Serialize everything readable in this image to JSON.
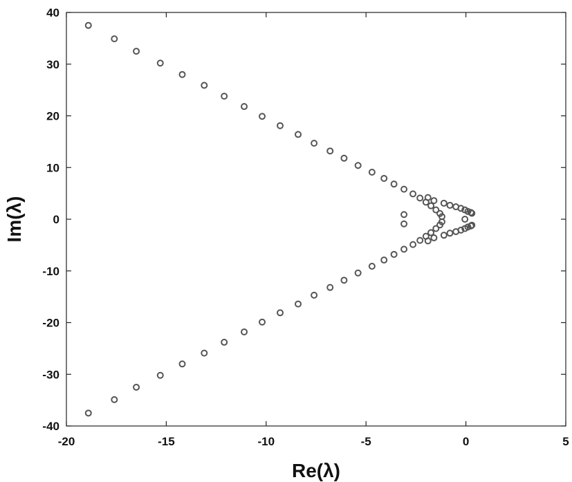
{
  "chart_data": {
    "type": "scatter",
    "title": "",
    "xlabel": "Re(λ)",
    "ylabel": "Im(λ)",
    "xlim": [
      -20,
      5
    ],
    "ylim": [
      -40,
      40
    ],
    "xticks": [
      -20,
      -15,
      -10,
      -5,
      0,
      5
    ],
    "yticks": [
      -40,
      -30,
      -20,
      -10,
      0,
      10,
      20,
      30,
      40
    ],
    "grid": false,
    "legend": "none",
    "marker": "open circle",
    "marker_color": "#555555",
    "series": [
      {
        "points": [
          [
            -18.9,
            37.5
          ],
          [
            -17.6,
            34.9
          ],
          [
            -16.5,
            32.5
          ],
          [
            -15.3,
            30.2
          ],
          [
            -14.2,
            28.0
          ],
          [
            -13.1,
            25.9
          ],
          [
            -12.1,
            23.8
          ],
          [
            -11.1,
            21.8
          ],
          [
            -10.2,
            19.9
          ],
          [
            -9.3,
            18.1
          ],
          [
            -8.4,
            16.4
          ],
          [
            -7.6,
            14.7
          ],
          [
            -6.8,
            13.2
          ],
          [
            -6.1,
            11.8
          ],
          [
            -5.4,
            10.4
          ],
          [
            -4.7,
            9.1
          ],
          [
            -4.1,
            7.9
          ],
          [
            -3.6,
            6.8
          ],
          [
            -3.1,
            5.8
          ],
          [
            -2.65,
            4.9
          ],
          [
            -2.3,
            4.1
          ],
          [
            -2.0,
            3.3
          ],
          [
            -1.75,
            2.6
          ],
          [
            -1.5,
            1.8
          ],
          [
            -1.3,
            1.1
          ],
          [
            -1.2,
            0.5
          ],
          [
            -3.1,
            0.9
          ],
          [
            -1.9,
            4.2
          ],
          [
            -1.6,
            3.6
          ],
          [
            -1.1,
            3.1
          ],
          [
            -0.8,
            2.7
          ],
          [
            -0.5,
            2.4
          ],
          [
            -0.25,
            2.1
          ],
          [
            -0.05,
            1.8
          ],
          [
            0.1,
            1.5
          ],
          [
            0.25,
            1.3
          ],
          [
            0.3,
            1.15
          ],
          [
            -0.05,
            0.0
          ],
          [
            -18.9,
            -37.5
          ],
          [
            -17.6,
            -34.9
          ],
          [
            -16.5,
            -32.5
          ],
          [
            -15.3,
            -30.2
          ],
          [
            -14.2,
            -28.0
          ],
          [
            -13.1,
            -25.9
          ],
          [
            -12.1,
            -23.8
          ],
          [
            -11.1,
            -21.8
          ],
          [
            -10.2,
            -19.9
          ],
          [
            -9.3,
            -18.1
          ],
          [
            -8.4,
            -16.4
          ],
          [
            -7.6,
            -14.7
          ],
          [
            -6.8,
            -13.2
          ],
          [
            -6.1,
            -11.8
          ],
          [
            -5.4,
            -10.4
          ],
          [
            -4.7,
            -9.1
          ],
          [
            -4.1,
            -7.9
          ],
          [
            -3.6,
            -6.8
          ],
          [
            -3.1,
            -5.8
          ],
          [
            -2.65,
            -4.9
          ],
          [
            -2.3,
            -4.1
          ],
          [
            -2.0,
            -3.3
          ],
          [
            -1.75,
            -2.6
          ],
          [
            -1.5,
            -1.8
          ],
          [
            -1.3,
            -1.1
          ],
          [
            -1.2,
            -0.5
          ],
          [
            -3.1,
            -0.9
          ],
          [
            -1.9,
            -4.2
          ],
          [
            -1.6,
            -3.6
          ],
          [
            -1.1,
            -3.1
          ],
          [
            -0.8,
            -2.7
          ],
          [
            -0.5,
            -2.4
          ],
          [
            -0.25,
            -2.1
          ],
          [
            -0.05,
            -1.8
          ],
          [
            0.1,
            -1.5
          ],
          [
            0.25,
            -1.3
          ],
          [
            0.3,
            -1.15
          ]
        ]
      }
    ]
  }
}
